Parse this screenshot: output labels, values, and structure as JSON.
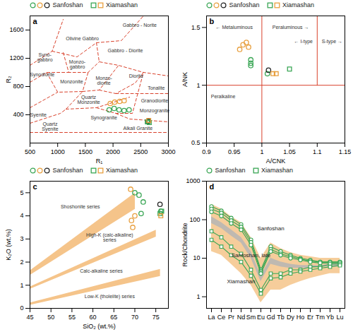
{
  "chart_data": [
    {
      "type": "scatter",
      "title": "a",
      "x_label": "R₁",
      "y_label": "R₂",
      "xlim": [
        500,
        3000
      ],
      "xticks": [
        500,
        1000,
        1500,
        2000,
        2500,
        3000
      ],
      "ylim": [
        0,
        1800
      ],
      "yticks": [
        400,
        800,
        1200,
        1600
      ],
      "legend": "top",
      "series": [
        {
          "name": "Sanfoshan",
          "color": "#3aa655",
          "marker": "circle",
          "x": [
            1930,
            2020,
            2110,
            2200,
            2290,
            2630
          ],
          "y": [
            470,
            490,
            470,
            460,
            470,
            300
          ]
        },
        {
          "name": "Sanfoshan",
          "color": "#e8a040",
          "marker": "circle",
          "x": [
            1950,
            2030,
            2120,
            2200
          ],
          "y": [
            560,
            580,
            590,
            600
          ]
        },
        {
          "name": "Sanfoshan",
          "color": "#222222",
          "marker": "circle",
          "x": [
            2640
          ],
          "y": [
            310
          ]
        },
        {
          "name": "Xiamashan",
          "color": "#3aa655",
          "marker": "square",
          "x": [
            2620,
            2655
          ],
          "y": [
            300,
            290
          ]
        },
        {
          "name": "Xiamashan",
          "color": "#e8a040",
          "marker": "square",
          "x": [
            2645
          ],
          "y": [
            320
          ]
        }
      ],
      "boundaries": [
        [
          [
            500,
            1100
          ],
          [
            900,
            1300
          ],
          [
            1100,
            1750
          ]
        ],
        [
          [
            900,
            1300
          ],
          [
            1350,
            1220
          ],
          [
            1700,
            1420
          ],
          [
            2150,
            1450
          ],
          [
            2550,
            1800
          ]
        ],
        [
          [
            1700,
            1420
          ],
          [
            1750,
            1150
          ],
          [
            2100,
            1100
          ],
          [
            2550,
            1000
          ],
          [
            3000,
            950
          ]
        ],
        [
          [
            1100,
            1280
          ],
          [
            1200,
            1000
          ],
          [
            1550,
            1000
          ],
          [
            1750,
            1150
          ]
        ],
        [
          [
            500,
            860
          ],
          [
            800,
            1000
          ],
          [
            1200,
            1000
          ]
        ],
        [
          [
            800,
            1000
          ],
          [
            1000,
            720
          ],
          [
            1450,
            730
          ],
          [
            1550,
            1000
          ]
        ],
        [
          [
            1450,
            730
          ],
          [
            1750,
            750
          ],
          [
            2100,
            1100
          ]
        ],
        [
          [
            1750,
            750
          ],
          [
            2050,
            700
          ],
          [
            2400,
            850
          ],
          [
            2550,
            1000
          ]
        ],
        [
          [
            2050,
            700
          ],
          [
            2400,
            700
          ],
          [
            3000,
            700
          ]
        ],
        [
          [
            500,
            500
          ],
          [
            1000,
            720
          ]
        ],
        [
          [
            500,
            280
          ],
          [
            1050,
            420
          ],
          [
            1150,
            480
          ],
          [
            1450,
            730
          ]
        ],
        [
          [
            1150,
            480
          ],
          [
            1700,
            500
          ],
          [
            2300,
            650
          ]
        ],
        [
          [
            1700,
            500
          ],
          [
            2050,
            420
          ],
          [
            2350,
            420
          ],
          [
            2550,
            1000
          ]
        ],
        [
          [
            2050,
            420
          ],
          [
            2300,
            340
          ],
          [
            3000,
            300
          ]
        ],
        [
          [
            500,
            150
          ],
          [
            3000,
            150
          ]
        ]
      ],
      "field_labels": [
        {
          "text": "Olivine Gabbro",
          "x": 1445,
          "y": 1478
        },
        {
          "text": "Gabbro - Norite",
          "x": 2481,
          "y": 1663
        },
        {
          "text": "Syno-\ngabbro",
          "x": 770,
          "y": 1210
        },
        {
          "text": "Monzo-\ngabbro",
          "x": 1355,
          "y": 1115
        },
        {
          "text": "Gabbro - Diorite",
          "x": 2222,
          "y": 1309
        },
        {
          "text": "Synodiorite",
          "x": 720,
          "y": 972
        },
        {
          "text": "Monzonite",
          "x": 1251,
          "y": 863
        },
        {
          "text": "Monzo-\ndiorite",
          "x": 1834,
          "y": 880
        },
        {
          "text": "Diorite",
          "x": 2417,
          "y": 947
        },
        {
          "text": "Syenite",
          "x": 650,
          "y": 400
        },
        {
          "text": "Quartz\nMonzonite",
          "x": 1560,
          "y": 610
        },
        {
          "text": "Tonalite",
          "x": 2780,
          "y": 779
        },
        {
          "text": "Granodiorite",
          "x": 2750,
          "y": 600
        },
        {
          "text": "Monzogranite",
          "x": 2750,
          "y": 460
        },
        {
          "text": "Quartz\nSyenite",
          "x": 863,
          "y": 232
        },
        {
          "text": "Synogranite",
          "x": 1834,
          "y": 358
        },
        {
          "text": "Alkali Granite",
          "x": 2450,
          "y": 205
        }
      ]
    },
    {
      "type": "scatter",
      "title": "b",
      "x_label": "A/CNK",
      "y_label": "A/NK",
      "xlim": [
        0.9,
        1.15
      ],
      "xticks": [
        0.9,
        0.95,
        1,
        1.05,
        1.1,
        1.15
      ],
      "ylim": [
        0.5,
        1.6
      ],
      "yticks": [
        0.5,
        1,
        1.5
      ],
      "legend": "top",
      "series": [
        {
          "name": "Sanfoshan",
          "color": "#3aa655",
          "marker": "circle",
          "x": [
            0.98,
            0.98,
            0.98,
            1.01
          ],
          "y": [
            1.22,
            1.19,
            1.17,
            1.1
          ]
        },
        {
          "name": "Sanfoshan",
          "color": "#e8a040",
          "marker": "circle",
          "x": [
            0.96,
            0.966,
            0.972,
            0.976
          ],
          "y": [
            1.31,
            1.35,
            1.37,
            1.33
          ]
        },
        {
          "name": "Sanfoshan",
          "color": "#222222",
          "marker": "circle",
          "x": [
            1.012
          ],
          "y": [
            1.13
          ]
        },
        {
          "name": "Xiamashan",
          "color": "#3aa655",
          "marker": "square",
          "x": [
            1.05
          ],
          "y": [
            1.14
          ]
        },
        {
          "name": "Xiamashan",
          "color": "#e8a040",
          "marker": "square",
          "x": [
            1.02,
            1.026
          ],
          "y": [
            1.1,
            1.1
          ]
        }
      ],
      "lines": [
        [
          [
            0.9,
            1
          ],
          [
            1.15,
            1
          ]
        ],
        [
          [
            1,
            0.5
          ],
          [
            1,
            1.6
          ]
        ],
        [
          [
            1.1,
            1
          ],
          [
            1.1,
            1.6
          ]
        ]
      ],
      "field_labels": [
        {
          "text": "← Metaluminous",
          "x": 0.95,
          "y": 1.5
        },
        {
          "text": "Peraluminous →",
          "x": 1.052,
          "y": 1.5
        },
        {
          "text": "← I-type",
          "x": 1.075,
          "y": 1.38
        },
        {
          "text": "S-type →",
          "x": 1.127,
          "y": 1.38
        },
        {
          "text": "Peralkaline",
          "x": 0.93,
          "y": 0.9
        }
      ]
    },
    {
      "type": "scatter",
      "title": "c",
      "x_label": "SiO₂ (wt.%)",
      "y_label": "K₂O (wt.%)",
      "xlim": [
        45,
        78
      ],
      "xticks": [
        45,
        50,
        55,
        60,
        65,
        70,
        75
      ],
      "ylim": [
        0,
        5.5
      ],
      "yticks": [
        0,
        1,
        2,
        3,
        4,
        5
      ],
      "legend": "top",
      "series": [
        {
          "name": "Sanfoshan",
          "color": "#3aa655",
          "marker": "circle",
          "x": [
            70,
            71,
            72,
            71.5,
            76.2
          ],
          "y": [
            5.0,
            4.9,
            4.6,
            4.1,
            4.2
          ]
        },
        {
          "name": "Sanfoshan",
          "color": "#e8a040",
          "marker": "circle",
          "x": [
            69,
            69.2,
            69.5,
            70
          ],
          "y": [
            5.15,
            3.8,
            3.5,
            4.0
          ]
        },
        {
          "name": "Sanfoshan",
          "color": "#222222",
          "marker": "circle",
          "x": [
            76
          ],
          "y": [
            4.5
          ]
        },
        {
          "name": "Xiamashan",
          "color": "#3aa655",
          "marker": "square",
          "x": [
            76,
            76.4
          ],
          "y": [
            4.1,
            4.2
          ]
        },
        {
          "name": "Xiamashan",
          "color": "#e8a040",
          "marker": "square",
          "x": [
            76.2
          ],
          "y": [
            4.0
          ]
        }
      ],
      "bands": [
        [
          [
            45,
            1.45
          ],
          [
            70,
            4.3
          ],
          [
            70,
            5.0
          ],
          [
            45,
            1.65
          ]
        ],
        [
          [
            45,
            0.85
          ],
          [
            75,
            3.1
          ],
          [
            75,
            3.4
          ],
          [
            45,
            0.95
          ]
        ],
        [
          [
            45,
            0.15
          ],
          [
            76,
            1.4
          ],
          [
            76,
            1.7
          ],
          [
            45,
            0.25
          ]
        ]
      ],
      "field_labels": [
        {
          "text": "Shoshonite series",
          "x": 57,
          "y": 4.4
        },
        {
          "text": "High-K (calc-alkaline)\nseries",
          "x": 64,
          "y": 3.05
        },
        {
          "text": "Calc-alkaline series",
          "x": 62,
          "y": 1.6
        },
        {
          "text": "Low-K (tholeiite) series",
          "x": 64,
          "y": 0.5
        }
      ]
    },
    {
      "type": "line",
      "title": "d",
      "y_label": "Rock/Chondrite",
      "log": "y",
      "categories": [
        "La",
        "Ce",
        "Pr",
        "Nd",
        "Sm",
        "Eu",
        "Gd",
        "Tb",
        "Dy",
        "Ho",
        "Er",
        "Tm",
        "Yb",
        "Lu"
      ],
      "ylim": [
        0.5,
        1000
      ],
      "yticks": [
        1,
        10,
        100,
        1000
      ],
      "legend": "top",
      "bands": [
        {
          "color": "#f5c48a",
          "lower": [
            15,
            12,
            7,
            4,
            2,
            0.7,
            1.5,
            1.5,
            2,
            2.5,
            3,
            3.5,
            4,
            4
          ],
          "upper": [
            250,
            190,
            120,
            85,
            35,
            10,
            25,
            18,
            14,
            12,
            11,
            10,
            10,
            10
          ]
        },
        {
          "color": "#b5b5b5",
          "lower": [
            80,
            60,
            38,
            25,
            10,
            2.5,
            7,
            6,
            5.5,
            5.5,
            5.5,
            6,
            6,
            6
          ],
          "upper": [
            120,
            85,
            55,
            35,
            15,
            3.5,
            10,
            8,
            7,
            6.5,
            6.5,
            6.5,
            7,
            7
          ]
        }
      ],
      "series": [
        {
          "name": "Sanfoshan",
          "color": "#3aa655",
          "marker": "circle",
          "values": [
            220,
            170,
            110,
            75,
            30,
            5,
            20,
            15,
            12,
            10,
            9,
            8,
            8,
            8
          ]
        },
        {
          "name": "Sanfoshan",
          "color": "#3aa655",
          "marker": "circle",
          "values": [
            190,
            150,
            95,
            65,
            26,
            4.5,
            17,
            13,
            11,
            9.5,
            8.5,
            8,
            8,
            8
          ]
        },
        {
          "name": "Sanfoshan",
          "color": "#3aa655",
          "marker": "circle",
          "values": [
            160,
            125,
            80,
            55,
            22,
            4,
            15,
            12,
            10,
            9,
            8,
            7.5,
            7.5,
            7.5
          ]
        },
        {
          "name": "Xiamashan",
          "color": "#3aa655",
          "marker": "square",
          "values": [
            50,
            35,
            20,
            13,
            5,
            1.5,
            4,
            4,
            5,
            5,
            6,
            6,
            7,
            7
          ]
        },
        {
          "name": "Xiamashan",
          "color": "#3aa655",
          "marker": "square",
          "values": [
            30,
            20,
            12,
            8,
            3.5,
            1.2,
            3,
            3.2,
            4,
            4.5,
            5,
            5.5,
            6,
            6.5
          ]
        }
      ],
      "field_labels": [
        {
          "text": "Sanfoshan",
          "x": "Gd",
          "y": 60
        },
        {
          "text": "Sanfoshan, late",
          "x": "Sm",
          "y": 12
        },
        {
          "text": "Xiamashan",
          "x": "Nd",
          "y": 2.5
        }
      ]
    }
  ]
}
